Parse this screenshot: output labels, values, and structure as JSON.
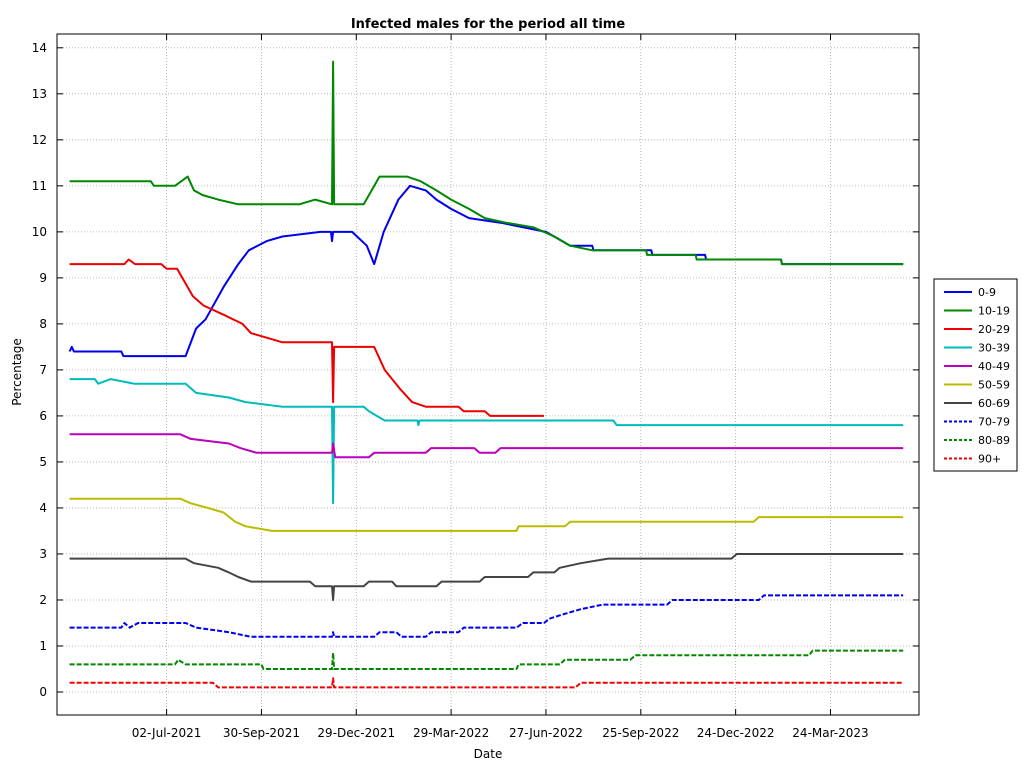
{
  "chart_data": {
    "type": "line",
    "title": "Infected males for the period all time",
    "xlabel": "Date",
    "ylabel": "Percentage",
    "ylim": [
      -0.5,
      14.3
    ],
    "yticks": [
      0,
      1,
      2,
      3,
      4,
      5,
      6,
      7,
      8,
      9,
      10,
      11,
      12,
      13,
      14
    ],
    "xlim": [
      "2021-03-20",
      "2023-06-16"
    ],
    "xticks": [
      "2021-07-02",
      "2021-09-30",
      "2021-12-29",
      "2022-03-29",
      "2022-06-27",
      "2022-09-25",
      "2022-12-24",
      "2023-03-24"
    ],
    "xtick_labels": [
      "02-Jul-2021",
      "30-Sep-2021",
      "29-Dec-2021",
      "29-Mar-2022",
      "27-Jun-2022",
      "25-Sep-2022",
      "24-Dec-2022",
      "24-Mar-2023"
    ],
    "grid": true,
    "legend_position": "right",
    "series": [
      {
        "name": "0-9",
        "color": "#0000ee",
        "style": "solid",
        "points": [
          [
            "2021-04-01",
            7.4
          ],
          [
            "2021-04-03",
            7.5
          ],
          [
            "2021-04-05",
            7.4
          ],
          [
            "2021-05-20",
            7.4
          ],
          [
            "2021-05-22",
            7.3
          ],
          [
            "2021-07-20",
            7.3
          ],
          [
            "2021-07-30",
            7.9
          ],
          [
            "2021-08-08",
            8.1
          ],
          [
            "2021-08-25",
            8.8
          ],
          [
            "2021-09-08",
            9.3
          ],
          [
            "2021-09-18",
            9.6
          ],
          [
            "2021-10-05",
            9.8
          ],
          [
            "2021-10-20",
            9.9
          ],
          [
            "2021-11-25",
            10.0
          ],
          [
            "2021-12-05",
            10.0
          ],
          [
            "2021-12-06",
            9.8
          ],
          [
            "2021-12-07",
            10.0
          ],
          [
            "2021-12-25",
            10.0
          ],
          [
            "2022-01-08",
            9.7
          ],
          [
            "2022-01-15",
            9.3
          ],
          [
            "2022-01-24",
            10.0
          ],
          [
            "2022-02-07",
            10.7
          ],
          [
            "2022-02-18",
            11.0
          ],
          [
            "2022-03-05",
            10.9
          ],
          [
            "2022-03-15",
            10.7
          ],
          [
            "2022-03-29",
            10.5
          ],
          [
            "2022-04-15",
            10.3
          ],
          [
            "2022-05-15",
            10.2
          ],
          [
            "2022-06-27",
            10.0
          ],
          [
            "2022-07-20",
            9.7
          ],
          [
            "2022-08-10",
            9.7
          ],
          [
            "2022-08-11",
            9.6
          ],
          [
            "2022-10-05",
            9.6
          ],
          [
            "2022-10-06",
            9.5
          ],
          [
            "2022-11-25",
            9.5
          ],
          [
            "2022-11-26",
            9.4
          ],
          [
            "2023-02-05",
            9.4
          ],
          [
            "2023-02-06",
            9.3
          ],
          [
            "2023-06-01",
            9.3
          ]
        ]
      },
      {
        "name": "10-19",
        "color": "#008800",
        "style": "solid",
        "points": [
          [
            "2021-04-01",
            11.1
          ],
          [
            "2021-06-17",
            11.1
          ],
          [
            "2021-06-20",
            11.0
          ],
          [
            "2021-07-10",
            11.0
          ],
          [
            "2021-07-22",
            11.2
          ],
          [
            "2021-07-28",
            10.9
          ],
          [
            "2021-08-05",
            10.8
          ],
          [
            "2021-08-20",
            10.7
          ],
          [
            "2021-09-08",
            10.6
          ],
          [
            "2021-11-05",
            10.6
          ],
          [
            "2021-11-20",
            10.7
          ],
          [
            "2021-12-06",
            10.6
          ],
          [
            "2021-12-07",
            13.7
          ],
          [
            "2021-12-08",
            10.6
          ],
          [
            "2022-01-05",
            10.6
          ],
          [
            "2022-01-20",
            11.2
          ],
          [
            "2022-02-15",
            11.2
          ],
          [
            "2022-02-28",
            11.1
          ],
          [
            "2022-03-15",
            10.9
          ],
          [
            "2022-03-29",
            10.7
          ],
          [
            "2022-04-15",
            10.5
          ],
          [
            "2022-04-30",
            10.3
          ],
          [
            "2022-05-20",
            10.2
          ],
          [
            "2022-06-15",
            10.1
          ],
          [
            "2022-07-05",
            9.9
          ],
          [
            "2022-07-20",
            9.7
          ],
          [
            "2022-08-10",
            9.6
          ],
          [
            "2022-09-30",
            9.6
          ],
          [
            "2022-10-01",
            9.5
          ],
          [
            "2022-11-16",
            9.5
          ],
          [
            "2022-11-17",
            9.4
          ],
          [
            "2023-02-05",
            9.4
          ],
          [
            "2023-02-06",
            9.3
          ],
          [
            "2023-06-01",
            9.3
          ]
        ]
      },
      {
        "name": "20-29",
        "color": "#ee0000",
        "style": "solid",
        "points": [
          [
            "2021-04-01",
            9.3
          ],
          [
            "2021-05-23",
            9.3
          ],
          [
            "2021-05-27",
            9.4
          ],
          [
            "2021-06-02",
            9.3
          ],
          [
            "2021-06-27",
            9.3
          ],
          [
            "2021-07-02",
            9.2
          ],
          [
            "2021-07-12",
            9.2
          ],
          [
            "2021-07-27",
            8.6
          ],
          [
            "2021-08-06",
            8.4
          ],
          [
            "2021-08-25",
            8.2
          ],
          [
            "2021-09-12",
            8.0
          ],
          [
            "2021-09-20",
            7.8
          ],
          [
            "2021-10-05",
            7.7
          ],
          [
            "2021-10-20",
            7.6
          ],
          [
            "2021-12-06",
            7.6
          ],
          [
            "2021-12-07",
            6.3
          ],
          [
            "2021-12-08",
            7.5
          ],
          [
            "2022-01-15",
            7.5
          ],
          [
            "2022-01-25",
            7.0
          ],
          [
            "2022-02-08",
            6.6
          ],
          [
            "2022-02-20",
            6.3
          ],
          [
            "2022-03-05",
            6.2
          ],
          [
            "2022-04-05",
            6.2
          ],
          [
            "2022-04-10",
            6.1
          ],
          [
            "2022-04-30",
            6.1
          ],
          [
            "2022-05-05",
            6.0
          ],
          [
            "2022-06-25",
            6.0
          ]
        ]
      },
      {
        "name": "30-39",
        "color": "#00bbbb",
        "style": "solid",
        "points": [
          [
            "2021-04-01",
            6.8
          ],
          [
            "2021-04-25",
            6.8
          ],
          [
            "2021-04-28",
            6.7
          ],
          [
            "2021-05-10",
            6.8
          ],
          [
            "2021-06-01",
            6.7
          ],
          [
            "2021-07-20",
            6.7
          ],
          [
            "2021-07-30",
            6.5
          ],
          [
            "2021-08-30",
            6.4
          ],
          [
            "2021-09-15",
            6.3
          ],
          [
            "2021-10-20",
            6.2
          ],
          [
            "2021-12-06",
            6.2
          ],
          [
            "2021-12-07",
            4.1
          ],
          [
            "2021-12-08",
            6.2
          ],
          [
            "2022-01-05",
            6.2
          ],
          [
            "2022-01-10",
            6.1
          ],
          [
            "2022-01-25",
            5.9
          ],
          [
            "2022-02-25",
            5.9
          ],
          [
            "2022-02-26",
            5.8
          ],
          [
            "2022-02-27",
            5.9
          ],
          [
            "2022-08-30",
            5.9
          ],
          [
            "2022-09-02",
            5.8
          ],
          [
            "2023-06-01",
            5.8
          ]
        ]
      },
      {
        "name": "40-49",
        "color": "#bb00bb",
        "style": "solid",
        "points": [
          [
            "2021-04-01",
            5.6
          ],
          [
            "2021-07-15",
            5.6
          ],
          [
            "2021-07-25",
            5.5
          ],
          [
            "2021-08-30",
            5.4
          ],
          [
            "2021-09-10",
            5.3
          ],
          [
            "2021-09-25",
            5.2
          ],
          [
            "2021-12-06",
            5.2
          ],
          [
            "2021-12-07",
            5.4
          ],
          [
            "2021-12-09",
            5.1
          ],
          [
            "2022-01-10",
            5.1
          ],
          [
            "2022-01-15",
            5.2
          ],
          [
            "2022-03-05",
            5.2
          ],
          [
            "2022-03-10",
            5.3
          ],
          [
            "2022-04-20",
            5.3
          ],
          [
            "2022-04-25",
            5.2
          ],
          [
            "2022-05-10",
            5.2
          ],
          [
            "2022-05-15",
            5.3
          ],
          [
            "2023-06-01",
            5.3
          ]
        ]
      },
      {
        "name": "50-59",
        "color": "#bbbb00",
        "style": "solid",
        "points": [
          [
            "2021-04-01",
            4.2
          ],
          [
            "2021-07-15",
            4.2
          ],
          [
            "2021-07-25",
            4.1
          ],
          [
            "2021-08-10",
            4.0
          ],
          [
            "2021-08-25",
            3.9
          ],
          [
            "2021-09-05",
            3.7
          ],
          [
            "2021-09-15",
            3.6
          ],
          [
            "2021-10-10",
            3.5
          ],
          [
            "2022-05-30",
            3.5
          ],
          [
            "2022-06-01",
            3.6
          ],
          [
            "2022-07-15",
            3.6
          ],
          [
            "2022-07-20",
            3.7
          ],
          [
            "2023-01-10",
            3.7
          ],
          [
            "2023-01-15",
            3.8
          ],
          [
            "2023-06-01",
            3.8
          ]
        ]
      },
      {
        "name": "60-69",
        "color": "#444444",
        "style": "solid",
        "points": [
          [
            "2021-04-01",
            2.9
          ],
          [
            "2021-07-20",
            2.9
          ],
          [
            "2021-07-28",
            2.8
          ],
          [
            "2021-08-20",
            2.7
          ],
          [
            "2021-08-30",
            2.6
          ],
          [
            "2021-09-08",
            2.5
          ],
          [
            "2021-09-20",
            2.4
          ],
          [
            "2021-11-15",
            2.4
          ],
          [
            "2021-11-20",
            2.3
          ],
          [
            "2021-12-06",
            2.3
          ],
          [
            "2021-12-07",
            2.0
          ],
          [
            "2021-12-08",
            2.3
          ],
          [
            "2022-01-05",
            2.3
          ],
          [
            "2022-01-10",
            2.4
          ],
          [
            "2022-02-01",
            2.4
          ],
          [
            "2022-02-05",
            2.3
          ],
          [
            "2022-03-15",
            2.3
          ],
          [
            "2022-03-20",
            2.4
          ],
          [
            "2022-04-25",
            2.4
          ],
          [
            "2022-04-30",
            2.5
          ],
          [
            "2022-06-10",
            2.5
          ],
          [
            "2022-06-15",
            2.6
          ],
          [
            "2022-07-05",
            2.6
          ],
          [
            "2022-07-10",
            2.7
          ],
          [
            "2022-07-30",
            2.8
          ],
          [
            "2022-08-25",
            2.9
          ],
          [
            "2022-12-20",
            2.9
          ],
          [
            "2022-12-25",
            3.0
          ],
          [
            "2023-06-01",
            3.0
          ]
        ]
      },
      {
        "name": "70-79",
        "color": "#0000ee",
        "style": "dotted",
        "points": [
          [
            "2021-04-01",
            1.4
          ],
          [
            "2021-05-20",
            1.4
          ],
          [
            "2021-05-23",
            1.5
          ],
          [
            "2021-05-28",
            1.4
          ],
          [
            "2021-06-05",
            1.5
          ],
          [
            "2021-07-20",
            1.5
          ],
          [
            "2021-07-30",
            1.4
          ],
          [
            "2021-08-30",
            1.3
          ],
          [
            "2021-09-20",
            1.2
          ],
          [
            "2021-12-06",
            1.2
          ],
          [
            "2021-12-07",
            1.3
          ],
          [
            "2021-12-08",
            1.2
          ],
          [
            "2022-01-15",
            1.2
          ],
          [
            "2022-01-20",
            1.3
          ],
          [
            "2022-02-05",
            1.3
          ],
          [
            "2022-02-10",
            1.2
          ],
          [
            "2022-03-05",
            1.2
          ],
          [
            "2022-03-10",
            1.3
          ],
          [
            "2022-04-05",
            1.3
          ],
          [
            "2022-04-10",
            1.4
          ],
          [
            "2022-05-30",
            1.4
          ],
          [
            "2022-06-05",
            1.5
          ],
          [
            "2022-06-25",
            1.5
          ],
          [
            "2022-07-01",
            1.6
          ],
          [
            "2022-07-15",
            1.7
          ],
          [
            "2022-07-30",
            1.8
          ],
          [
            "2022-08-20",
            1.9
          ],
          [
            "2022-10-20",
            1.9
          ],
          [
            "2022-10-25",
            2.0
          ],
          [
            "2023-01-15",
            2.0
          ],
          [
            "2023-01-20",
            2.1
          ],
          [
            "2023-06-01",
            2.1
          ]
        ]
      },
      {
        "name": "80-89",
        "color": "#008800",
        "style": "dotted",
        "points": [
          [
            "2021-04-01",
            0.6
          ],
          [
            "2021-07-10",
            0.6
          ],
          [
            "2021-07-13",
            0.7
          ],
          [
            "2021-07-20",
            0.6
          ],
          [
            "2021-09-30",
            0.6
          ],
          [
            "2021-10-02",
            0.5
          ],
          [
            "2021-12-06",
            0.5
          ],
          [
            "2021-12-07",
            0.85
          ],
          [
            "2021-12-08",
            0.5
          ],
          [
            "2022-05-30",
            0.5
          ],
          [
            "2022-06-01",
            0.6
          ],
          [
            "2022-07-10",
            0.6
          ],
          [
            "2022-07-15",
            0.7
          ],
          [
            "2022-09-15",
            0.7
          ],
          [
            "2022-09-20",
            0.8
          ],
          [
            "2023-03-04",
            0.8
          ],
          [
            "2023-03-07",
            0.9
          ],
          [
            "2023-06-01",
            0.9
          ]
        ]
      },
      {
        "name": "90+",
        "color": "#ee0000",
        "style": "dotted",
        "points": [
          [
            "2021-04-01",
            0.2
          ],
          [
            "2021-08-15",
            0.2
          ],
          [
            "2021-08-20",
            0.1
          ],
          [
            "2021-12-06",
            0.1
          ],
          [
            "2021-12-07",
            0.3
          ],
          [
            "2021-12-08",
            0.1
          ],
          [
            "2022-07-25",
            0.1
          ],
          [
            "2022-07-30",
            0.2
          ],
          [
            "2023-06-01",
            0.2
          ]
        ]
      }
    ]
  }
}
